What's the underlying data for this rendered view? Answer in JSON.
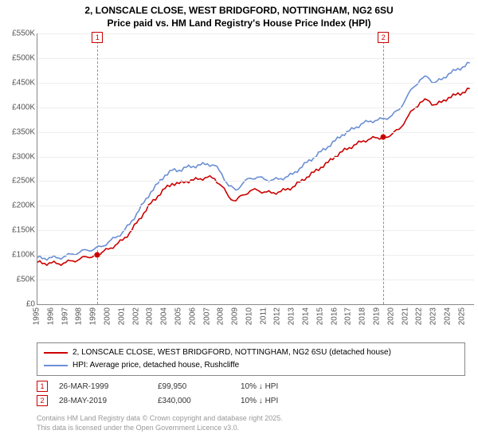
{
  "title_line1": "2, LONSCALE CLOSE, WEST BRIDGFORD, NOTTINGHAM, NG2 6SU",
  "title_line2": "Price paid vs. HM Land Registry's House Price Index (HPI)",
  "chart": {
    "type": "line",
    "background_color": "#ffffff",
    "grid_color": "#eeeeee",
    "axis_color": "#888888",
    "ylim": [
      0,
      550000
    ],
    "ytick_step": 50000,
    "ytick_labels": [
      "£0",
      "£50K",
      "£100K",
      "£150K",
      "£200K",
      "£250K",
      "£300K",
      "£350K",
      "£400K",
      "£450K",
      "£500K",
      "£550K"
    ],
    "x_years": [
      1995,
      1996,
      1997,
      1998,
      1999,
      2000,
      2001,
      2002,
      2003,
      2004,
      2005,
      2006,
      2007,
      2008,
      2009,
      2010,
      2011,
      2012,
      2013,
      2014,
      2015,
      2016,
      2017,
      2018,
      2019,
      2020,
      2021,
      2022,
      2023,
      2024,
      2025
    ],
    "label_fontsize": 10,
    "line_width": 1.6,
    "series": [
      {
        "name": "price_paid",
        "color": "#cc0000",
        "label": "2, LONSCALE CLOSE, WEST BRIDGFORD, NOTTINGHAM, NG2 6SU (detached house)",
        "points": [
          [
            1995.0,
            85000
          ],
          [
            1995.5,
            83000
          ],
          [
            1996.0,
            84000
          ],
          [
            1996.5,
            82000
          ],
          [
            1997.0,
            85000
          ],
          [
            1997.5,
            88000
          ],
          [
            1998.0,
            92000
          ],
          [
            1998.5,
            96000
          ],
          [
            1999.0,
            99000
          ],
          [
            1999.23,
            99950
          ],
          [
            1999.5,
            104000
          ],
          [
            2000.0,
            112000
          ],
          [
            2000.5,
            120000
          ],
          [
            2001.0,
            130000
          ],
          [
            2001.5,
            145000
          ],
          [
            2002.0,
            165000
          ],
          [
            2002.5,
            185000
          ],
          [
            2003.0,
            205000
          ],
          [
            2003.5,
            220000
          ],
          [
            2004.0,
            235000
          ],
          [
            2004.5,
            245000
          ],
          [
            2005.0,
            245000
          ],
          [
            2005.5,
            250000
          ],
          [
            2006.0,
            252000
          ],
          [
            2006.5,
            255000
          ],
          [
            2007.0,
            258000
          ],
          [
            2007.5,
            255000
          ],
          [
            2008.0,
            240000
          ],
          [
            2008.5,
            218000
          ],
          [
            2009.0,
            210000
          ],
          [
            2009.5,
            222000
          ],
          [
            2010.0,
            230000
          ],
          [
            2010.5,
            232000
          ],
          [
            2011.0,
            228000
          ],
          [
            2011.5,
            226000
          ],
          [
            2012.0,
            228000
          ],
          [
            2012.5,
            232000
          ],
          [
            2013.0,
            238000
          ],
          [
            2013.5,
            248000
          ],
          [
            2014.0,
            258000
          ],
          [
            2014.5,
            268000
          ],
          [
            2015.0,
            278000
          ],
          [
            2015.5,
            288000
          ],
          [
            2016.0,
            300000
          ],
          [
            2016.5,
            310000
          ],
          [
            2017.0,
            318000
          ],
          [
            2017.5,
            325000
          ],
          [
            2018.0,
            332000
          ],
          [
            2018.5,
            336000
          ],
          [
            2019.0,
            338000
          ],
          [
            2019.41,
            340000
          ],
          [
            2019.5,
            340000
          ],
          [
            2020.0,
            345000
          ],
          [
            2020.5,
            355000
          ],
          [
            2021.0,
            375000
          ],
          [
            2021.5,
            395000
          ],
          [
            2022.0,
            410000
          ],
          [
            2022.5,
            415000
          ],
          [
            2023.0,
            405000
          ],
          [
            2023.5,
            410000
          ],
          [
            2024.0,
            420000
          ],
          [
            2024.5,
            425000
          ],
          [
            2025.0,
            430000
          ],
          [
            2025.5,
            438000
          ]
        ]
      },
      {
        "name": "hpi",
        "color": "#6a8fd4",
        "label": "HPI: Average price, detached house, Rushcliffe",
        "points": [
          [
            1995.0,
            95000
          ],
          [
            1995.5,
            93000
          ],
          [
            1996.0,
            95000
          ],
          [
            1996.5,
            94000
          ],
          [
            1997.0,
            98000
          ],
          [
            1997.5,
            102000
          ],
          [
            1998.0,
            106000
          ],
          [
            1998.5,
            110000
          ],
          [
            1999.0,
            112000
          ],
          [
            1999.5,
            117000
          ],
          [
            2000.0,
            126000
          ],
          [
            2000.5,
            135000
          ],
          [
            2001.0,
            146000
          ],
          [
            2001.5,
            162000
          ],
          [
            2002.0,
            184000
          ],
          [
            2002.5,
            206000
          ],
          [
            2003.0,
            228000
          ],
          [
            2003.5,
            245000
          ],
          [
            2004.0,
            262000
          ],
          [
            2004.5,
            272000
          ],
          [
            2005.0,
            272000
          ],
          [
            2005.5,
            278000
          ],
          [
            2006.0,
            280000
          ],
          [
            2006.5,
            283000
          ],
          [
            2007.0,
            285000
          ],
          [
            2007.5,
            282000
          ],
          [
            2008.0,
            265000
          ],
          [
            2008.5,
            240000
          ],
          [
            2009.0,
            232000
          ],
          [
            2009.5,
            246000
          ],
          [
            2010.0,
            256000
          ],
          [
            2010.5,
            258000
          ],
          [
            2011.0,
            254000
          ],
          [
            2011.5,
            252000
          ],
          [
            2012.0,
            254000
          ],
          [
            2012.5,
            258000
          ],
          [
            2013.0,
            264000
          ],
          [
            2013.5,
            276000
          ],
          [
            2014.0,
            288000
          ],
          [
            2014.5,
            298000
          ],
          [
            2015.0,
            310000
          ],
          [
            2015.5,
            320000
          ],
          [
            2016.0,
            332000
          ],
          [
            2016.5,
            344000
          ],
          [
            2017.0,
            352000
          ],
          [
            2017.5,
            360000
          ],
          [
            2018.0,
            368000
          ],
          [
            2018.5,
            372000
          ],
          [
            2019.0,
            374000
          ],
          [
            2019.5,
            377000
          ],
          [
            2020.0,
            383000
          ],
          [
            2020.5,
            395000
          ],
          [
            2021.0,
            418000
          ],
          [
            2021.5,
            440000
          ],
          [
            2022.0,
            456000
          ],
          [
            2022.5,
            462000
          ],
          [
            2023.0,
            450000
          ],
          [
            2023.5,
            456000
          ],
          [
            2024.0,
            468000
          ],
          [
            2024.5,
            475000
          ],
          [
            2025.0,
            482000
          ],
          [
            2025.5,
            490000
          ]
        ]
      }
    ],
    "events": [
      {
        "n": "1",
        "year": 1999.23,
        "date": "26-MAR-1999",
        "price": "£99,950",
        "delta": "10% ↓ HPI",
        "color": "#cc0000",
        "dot_y": 99950
      },
      {
        "n": "2",
        "year": 2019.41,
        "date": "28-MAY-2019",
        "price": "£340,000",
        "delta": "10% ↓ HPI",
        "color": "#cc0000",
        "dot_y": 340000
      }
    ],
    "event_line_color": "#e07070"
  },
  "attribution_line1": "Contains HM Land Registry data © Crown copyright and database right 2025.",
  "attribution_line2": "This data is licensed under the Open Government Licence v3.0."
}
